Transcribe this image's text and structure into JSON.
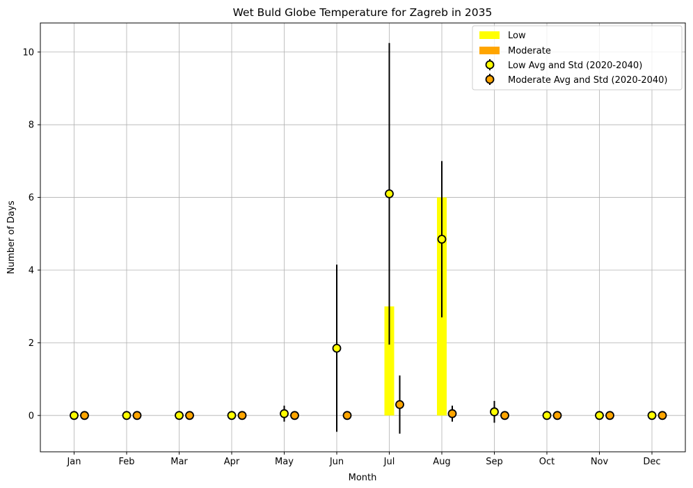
{
  "chart_data": {
    "type": "bar",
    "title": "Wet Buld Globe Temperature for Zagreb in 2035",
    "xlabel": "Month",
    "ylabel": "Number of Days",
    "categories": [
      "Jan",
      "Feb",
      "Mar",
      "Apr",
      "May",
      "Jun",
      "Jul",
      "Aug",
      "Sep",
      "Oct",
      "Nov",
      "Dec"
    ],
    "ylim": [
      -1,
      10.8
    ],
    "yticks": [
      0,
      2,
      4,
      6,
      8,
      10
    ],
    "grid": true,
    "legend_position": "top-right",
    "bars": [
      {
        "name": "Low",
        "color": "#ffff00",
        "values": [
          0,
          0,
          0,
          0,
          0,
          0,
          3,
          6,
          0,
          0,
          0,
          0
        ]
      },
      {
        "name": "Moderate",
        "color": "#ffa500",
        "values": [
          0,
          0,
          0,
          0,
          0,
          0,
          0,
          0,
          0,
          0,
          0,
          0
        ]
      }
    ],
    "errorbars": [
      {
        "name": "Low Avg and Std (2020-2040)",
        "color": "#ffff00",
        "mean": [
          0,
          0,
          0,
          0,
          0.05,
          1.85,
          6.1,
          4.85,
          0.1,
          0,
          0,
          0
        ],
        "std": [
          0,
          0,
          0,
          0,
          0.22,
          2.3,
          4.15,
          2.15,
          0.3,
          0,
          0,
          0
        ]
      },
      {
        "name": "Moderate Avg and Std (2020-2040)",
        "color": "#ffa500",
        "mean": [
          0,
          0,
          0,
          0,
          0,
          0,
          0.3,
          0.05,
          0,
          0,
          0,
          0
        ],
        "std": [
          0,
          0,
          0,
          0,
          0,
          0,
          0.8,
          0.22,
          0,
          0,
          0,
          0
        ]
      }
    ]
  }
}
